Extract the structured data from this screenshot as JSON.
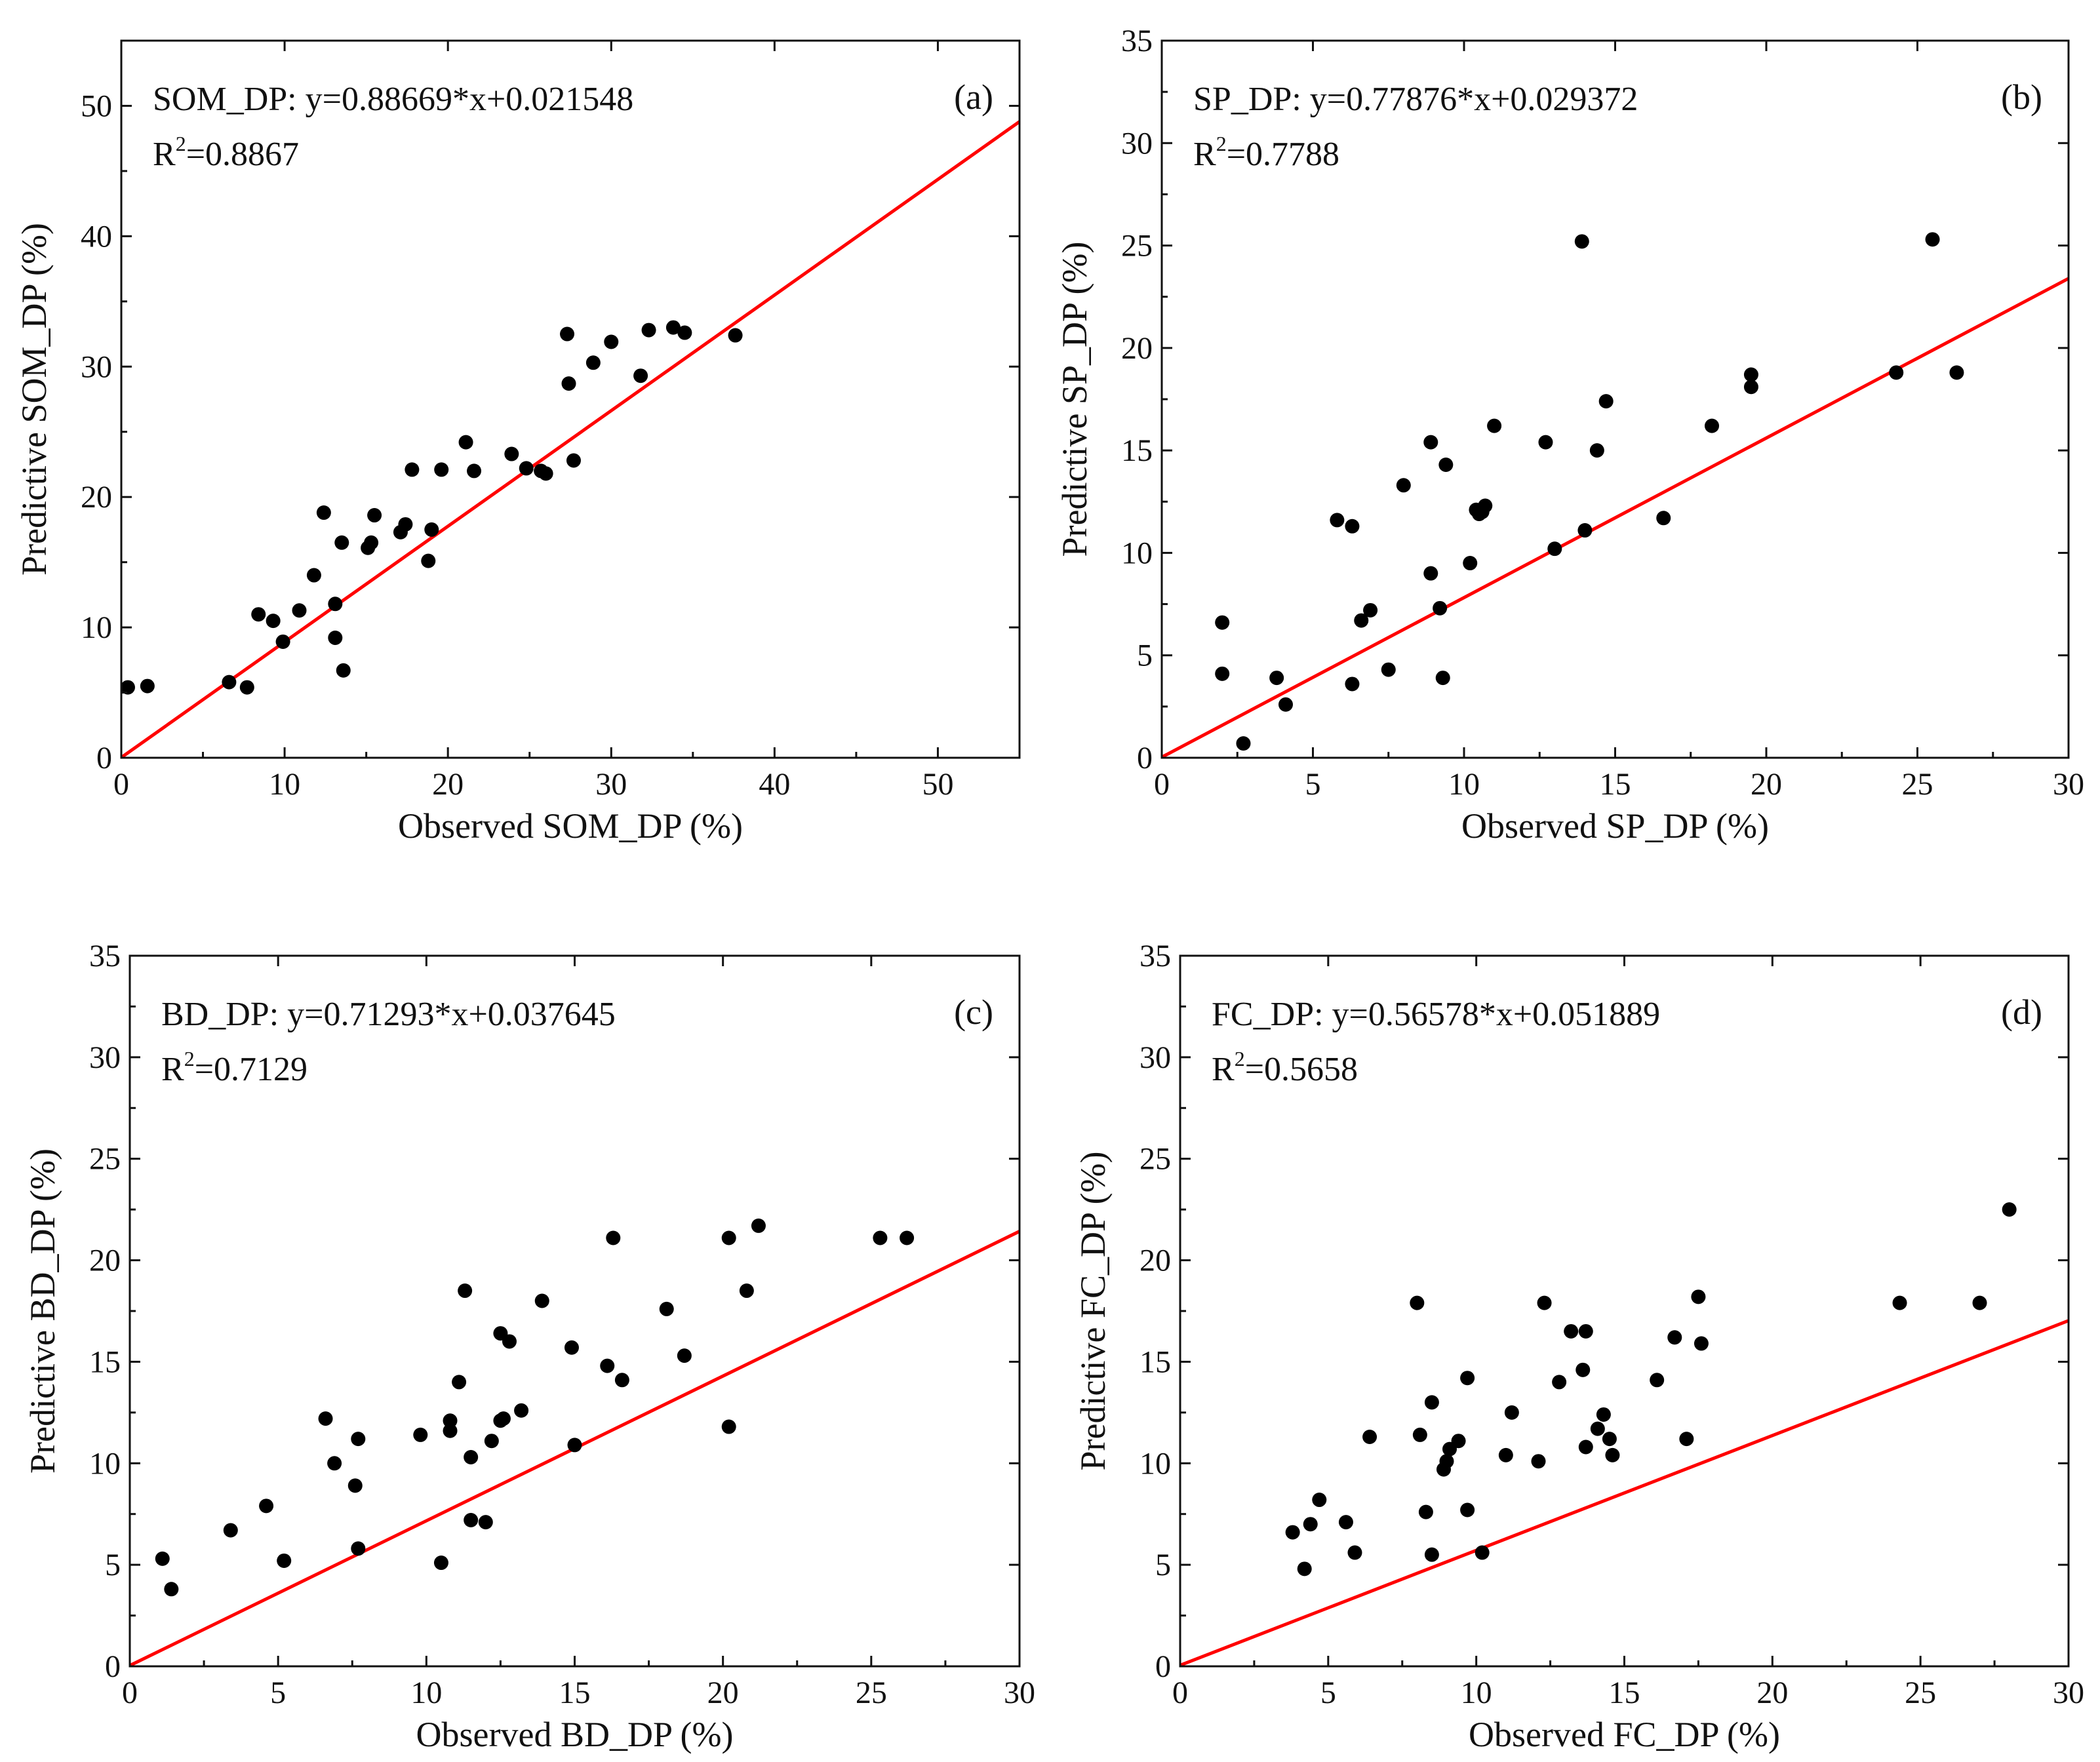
{
  "chart_data": [
    {
      "type": "scatter",
      "panel": "(a)",
      "equation": "SOM_DP: y=0.88669*x+0.021548",
      "r2_base": "R",
      "r2_sup": "2",
      "r2_value": "=0.8867",
      "xlabel": "Observed SOM_DP (%)",
      "ylabel": "Predictive SOM_DP (%)",
      "xlim": [
        0,
        55
      ],
      "ylim": [
        0,
        55
      ],
      "xticks": [
        0,
        10,
        20,
        30,
        40,
        50
      ],
      "yticks": [
        0,
        10,
        20,
        30,
        40,
        50
      ],
      "fit": {
        "slope": 0.88669,
        "intercept": 0.021548
      },
      "fit_color": "#ff0000",
      "marker_color": "#000000",
      "points": [
        [
          0.4,
          5.4
        ],
        [
          1.6,
          5.5
        ],
        [
          6.6,
          5.8
        ],
        [
          7.7,
          5.4
        ],
        [
          8.4,
          11.0
        ],
        [
          9.3,
          10.5
        ],
        [
          9.9,
          8.9
        ],
        [
          10.9,
          11.3
        ],
        [
          11.8,
          14.0
        ],
        [
          12.4,
          18.8
        ],
        [
          13.1,
          9.2
        ],
        [
          13.1,
          11.8
        ],
        [
          13.6,
          6.7
        ],
        [
          13.5,
          16.5
        ],
        [
          15.1,
          16.1
        ],
        [
          15.3,
          16.5
        ],
        [
          15.5,
          18.6
        ],
        [
          17.1,
          17.3
        ],
        [
          17.4,
          17.9
        ],
        [
          17.8,
          22.1
        ],
        [
          18.8,
          15.1
        ],
        [
          19.0,
          17.5
        ],
        [
          19.6,
          22.1
        ],
        [
          21.1,
          24.2
        ],
        [
          21.6,
          22.0
        ],
        [
          23.9,
          23.3
        ],
        [
          24.8,
          22.2
        ],
        [
          25.7,
          22.0
        ],
        [
          26.0,
          21.8
        ],
        [
          27.3,
          32.5
        ],
        [
          27.4,
          28.7
        ],
        [
          27.7,
          22.8
        ],
        [
          28.9,
          30.3
        ],
        [
          30.0,
          31.9
        ],
        [
          31.8,
          29.3
        ],
        [
          32.3,
          32.8
        ],
        [
          33.8,
          33.0
        ],
        [
          34.5,
          32.6
        ],
        [
          37.6,
          32.4
        ]
      ]
    },
    {
      "type": "scatter",
      "panel": "(b)",
      "equation": "SP_DP: y=0.77876*x+0.029372",
      "r2_base": "R",
      "r2_sup": "2",
      "r2_value": "=0.7788",
      "xlabel": "Observed SP_DP (%)",
      "ylabel": "Predictive SP_DP (%)",
      "xlim": [
        0,
        30
      ],
      "ylim": [
        0,
        35
      ],
      "xticks": [
        0,
        5,
        10,
        15,
        20,
        25,
        30
      ],
      "yticks": [
        0,
        5,
        10,
        15,
        20,
        25,
        30,
        35
      ],
      "fit": {
        "slope": 0.77876,
        "intercept": 0.029372
      },
      "fit_color": "#ff0000",
      "marker_color": "#000000",
      "points": [
        [
          2.0,
          6.6
        ],
        [
          2.0,
          4.1
        ],
        [
          2.7,
          0.7
        ],
        [
          3.8,
          3.9
        ],
        [
          4.1,
          2.6
        ],
        [
          5.8,
          11.6
        ],
        [
          6.3,
          11.3
        ],
        [
          6.3,
          3.6
        ],
        [
          6.6,
          6.7
        ],
        [
          6.9,
          7.2
        ],
        [
          7.5,
          4.3
        ],
        [
          8.0,
          13.3
        ],
        [
          8.9,
          15.4
        ],
        [
          8.9,
          9.0
        ],
        [
          9.2,
          7.3
        ],
        [
          9.3,
          3.9
        ],
        [
          9.4,
          14.3
        ],
        [
          10.2,
          9.5
        ],
        [
          10.4,
          12.1
        ],
        [
          10.5,
          11.9
        ],
        [
          10.6,
          12.0
        ],
        [
          10.7,
          12.3
        ],
        [
          11.0,
          16.2
        ],
        [
          12.7,
          15.4
        ],
        [
          13.0,
          10.2
        ],
        [
          13.9,
          25.2
        ],
        [
          14.0,
          11.1
        ],
        [
          14.4,
          15.0
        ],
        [
          14.7,
          17.4
        ],
        [
          16.6,
          11.7
        ],
        [
          18.2,
          16.2
        ],
        [
          19.5,
          18.1
        ],
        [
          19.5,
          18.7
        ],
        [
          24.3,
          18.8
        ],
        [
          25.5,
          25.3
        ],
        [
          26.3,
          18.8
        ]
      ]
    },
    {
      "type": "scatter",
      "panel": "(c)",
      "equation": "BD_DP: y=0.71293*x+0.037645",
      "r2_base": "R",
      "r2_sup": "2",
      "r2_value": "=0.7129",
      "xlabel": "Observed BD_DP (%)",
      "ylabel": "Predictive BD_DP (%)",
      "xlim": [
        0,
        30
      ],
      "ylim": [
        0,
        35
      ],
      "xticks": [
        0,
        5,
        10,
        15,
        20,
        25,
        30
      ],
      "yticks": [
        0,
        5,
        10,
        15,
        20,
        25,
        30,
        35
      ],
      "fit": {
        "slope": 0.71293,
        "intercept": 0.037645
      },
      "fit_color": "#ff0000",
      "marker_color": "#000000",
      "points": [
        [
          1.1,
          5.3
        ],
        [
          1.4,
          3.8
        ],
        [
          3.4,
          6.7
        ],
        [
          4.6,
          7.9
        ],
        [
          5.2,
          5.2
        ],
        [
          6.6,
          12.2
        ],
        [
          6.9,
          10.0
        ],
        [
          7.6,
          8.9
        ],
        [
          7.7,
          11.2
        ],
        [
          7.7,
          5.8
        ],
        [
          9.8,
          11.4
        ],
        [
          10.5,
          5.1
        ],
        [
          10.8,
          12.1
        ],
        [
          10.8,
          11.6
        ],
        [
          11.1,
          14.0
        ],
        [
          11.3,
          18.5
        ],
        [
          11.5,
          10.3
        ],
        [
          11.5,
          7.2
        ],
        [
          12.0,
          7.1
        ],
        [
          12.2,
          11.1
        ],
        [
          12.5,
          16.4
        ],
        [
          12.5,
          12.1
        ],
        [
          12.6,
          12.2
        ],
        [
          12.8,
          16.0
        ],
        [
          13.2,
          12.6
        ],
        [
          13.9,
          18.0
        ],
        [
          14.9,
          15.7
        ],
        [
          15.0,
          10.9
        ],
        [
          16.1,
          14.8
        ],
        [
          16.3,
          21.1
        ],
        [
          16.6,
          14.1
        ],
        [
          18.1,
          17.6
        ],
        [
          18.7,
          15.3
        ],
        [
          20.2,
          21.1
        ],
        [
          20.2,
          11.8
        ],
        [
          20.8,
          18.5
        ],
        [
          21.2,
          21.7
        ],
        [
          25.3,
          21.1
        ],
        [
          26.2,
          21.1
        ]
      ]
    },
    {
      "type": "scatter",
      "panel": "(d)",
      "equation": "FC_DP: y=0.56578*x+0.051889",
      "r2_base": "R",
      "r2_sup": "2",
      "r2_value": "=0.5658",
      "xlabel": "Observed FC_DP (%)",
      "ylabel": "Predictive FC_DP (%)",
      "xlim": [
        0,
        30
      ],
      "ylim": [
        0,
        35
      ],
      "xticks": [
        0,
        5,
        10,
        15,
        20,
        25,
        30
      ],
      "yticks": [
        0,
        5,
        10,
        15,
        20,
        25,
        30,
        35
      ],
      "fit": {
        "slope": 0.56578,
        "intercept": 0.051889
      },
      "fit_color": "#ff0000",
      "marker_color": "#000000",
      "points": [
        [
          3.8,
          6.6
        ],
        [
          4.2,
          4.8
        ],
        [
          4.4,
          7.0
        ],
        [
          4.7,
          8.2
        ],
        [
          5.6,
          7.1
        ],
        [
          5.9,
          5.6
        ],
        [
          6.4,
          11.3
        ],
        [
          8.0,
          17.9
        ],
        [
          8.1,
          11.4
        ],
        [
          8.3,
          7.6
        ],
        [
          8.5,
          13.0
        ],
        [
          8.5,
          5.5
        ],
        [
          8.9,
          9.7
        ],
        [
          9.0,
          10.1
        ],
        [
          9.1,
          10.7
        ],
        [
          9.4,
          11.1
        ],
        [
          9.7,
          14.2
        ],
        [
          9.7,
          7.7
        ],
        [
          10.2,
          5.6
        ],
        [
          11.0,
          10.4
        ],
        [
          11.2,
          12.5
        ],
        [
          12.1,
          10.1
        ],
        [
          12.3,
          17.9
        ],
        [
          12.8,
          14.0
        ],
        [
          13.2,
          16.5
        ],
        [
          13.6,
          14.6
        ],
        [
          13.7,
          16.5
        ],
        [
          13.7,
          10.8
        ],
        [
          14.1,
          11.7
        ],
        [
          14.3,
          12.4
        ],
        [
          14.5,
          11.2
        ],
        [
          14.6,
          10.4
        ],
        [
          16.1,
          14.1
        ],
        [
          16.7,
          16.2
        ],
        [
          17.1,
          11.2
        ],
        [
          17.5,
          18.2
        ],
        [
          17.6,
          15.9
        ],
        [
          24.3,
          17.9
        ],
        [
          27.0,
          17.9
        ],
        [
          28.0,
          22.5
        ]
      ]
    }
  ]
}
